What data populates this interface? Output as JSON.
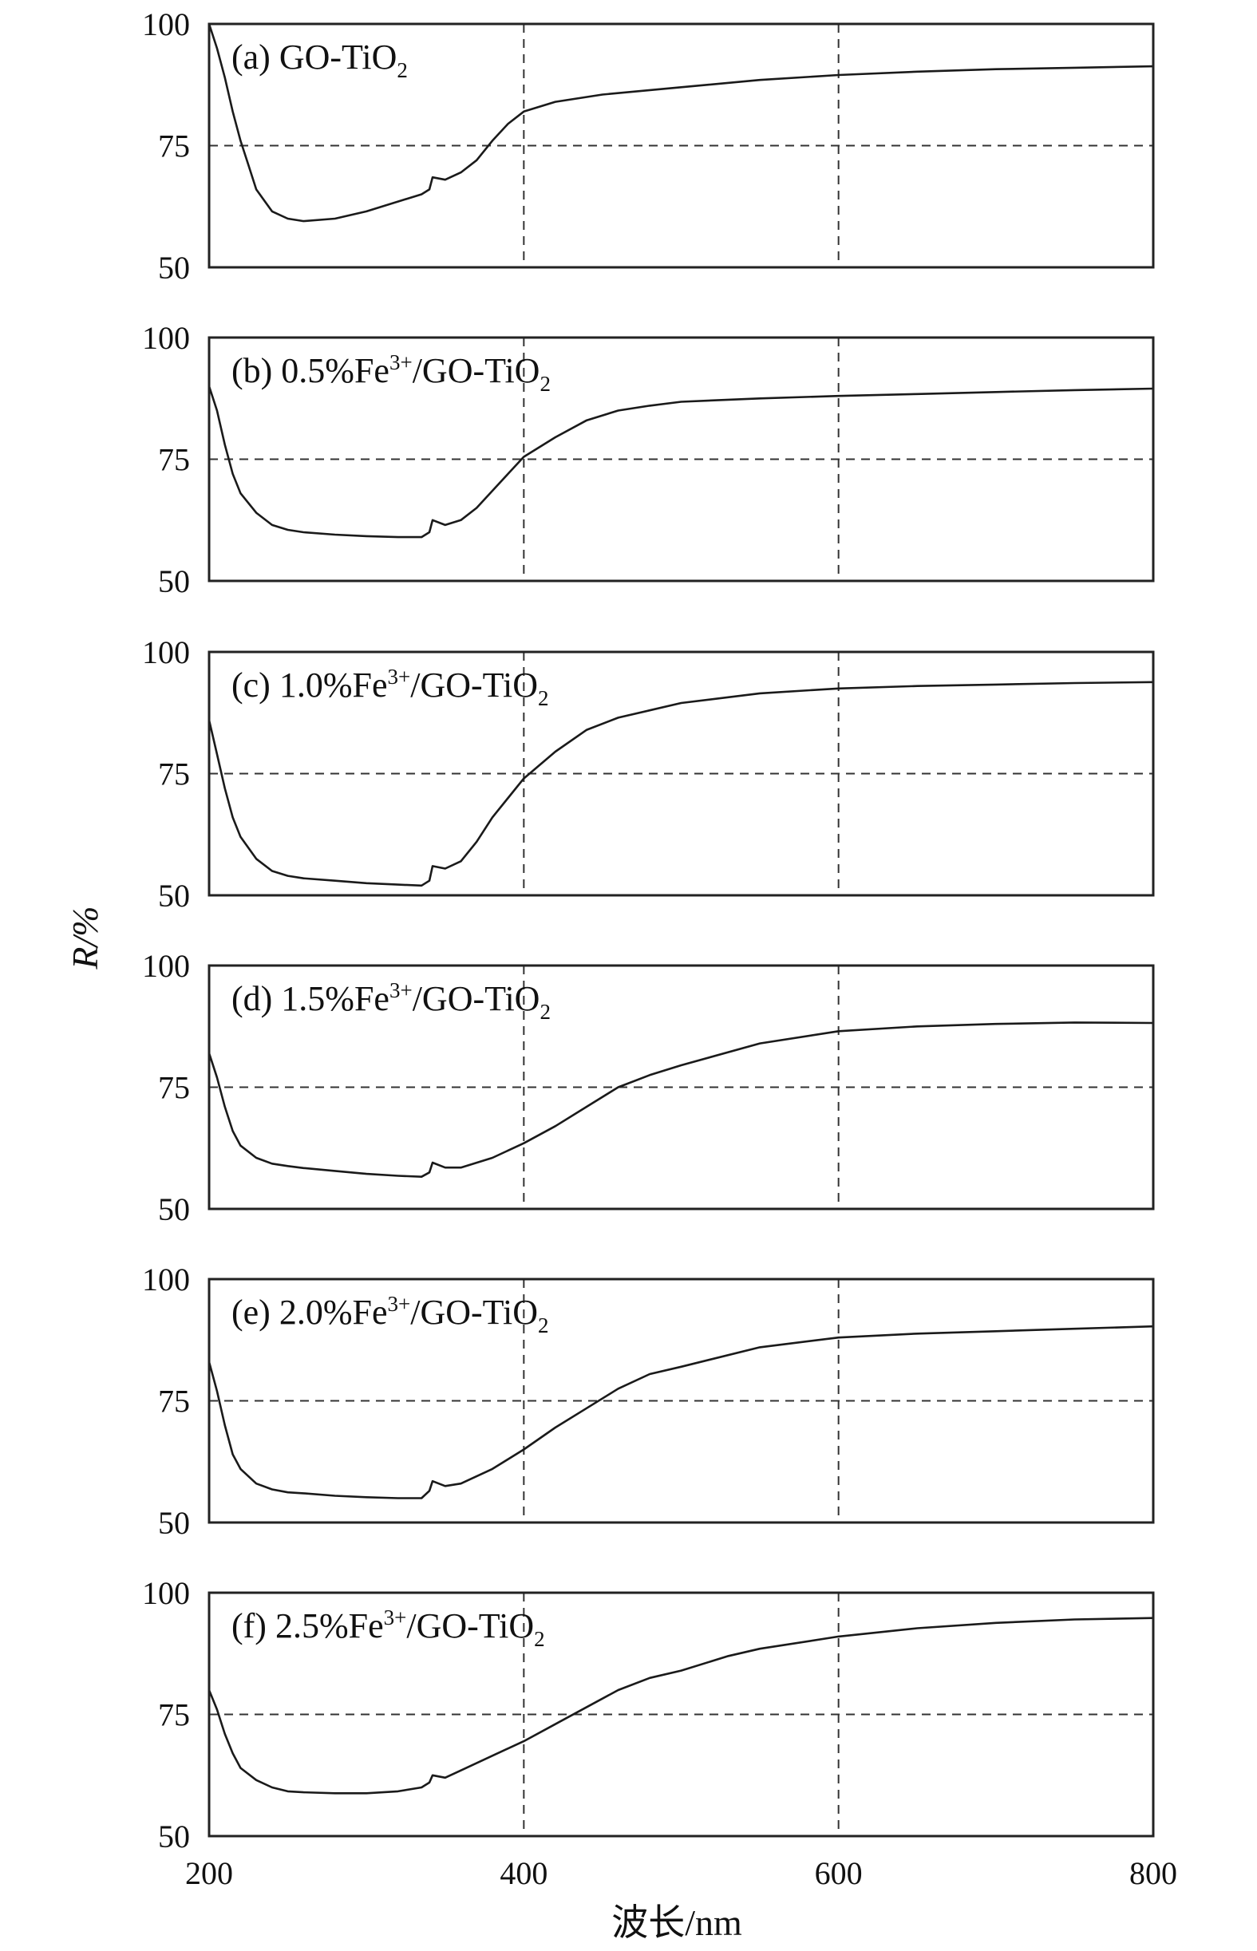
{
  "chart_data": {
    "type": "line",
    "layout": "stacked-panels",
    "xlabel": "波长/nm",
    "ylabel": "R/%",
    "xlim": [
      200,
      800
    ],
    "ylim": [
      50,
      100
    ],
    "x_ticks": [
      "200",
      "400",
      "600",
      "800"
    ],
    "y_ticks": [
      "50",
      "75",
      "100"
    ],
    "grid": {
      "style": "dashed",
      "x_lines": [
        400,
        600
      ],
      "y_lines": [
        75
      ]
    },
    "line_color": "#1a1a1a",
    "panels": [
      {
        "id": "a",
        "label": {
          "prefix": "(a) GO-TiO",
          "sub": "2"
        },
        "x": [
          200,
          205,
          210,
          215,
          220,
          225,
          230,
          240,
          250,
          260,
          280,
          300,
          320,
          335,
          340,
          342,
          350,
          360,
          370,
          380,
          390,
          400,
          420,
          450,
          500,
          550,
          600,
          650,
          700,
          750,
          800
        ],
        "y": [
          100,
          95,
          89,
          82,
          76,
          71,
          66,
          61.5,
          60,
          59.5,
          60,
          61.5,
          63.5,
          65,
          66,
          68.5,
          68,
          69.5,
          72,
          76,
          79.5,
          82,
          84,
          85.5,
          87,
          88.5,
          89.5,
          90.2,
          90.7,
          91,
          91.3
        ]
      },
      {
        "id": "b",
        "label": {
          "prefix": "(b) 0.5%Fe",
          "sup": "3+",
          "mid": "/GO-TiO",
          "sub": "2"
        },
        "x": [
          200,
          205,
          210,
          215,
          220,
          230,
          240,
          250,
          260,
          280,
          300,
          320,
          335,
          340,
          342,
          350,
          360,
          370,
          380,
          390,
          400,
          420,
          440,
          460,
          480,
          500,
          550,
          600,
          650,
          700,
          750,
          800
        ],
        "y": [
          90,
          85,
          78,
          72,
          68,
          64,
          61.5,
          60.5,
          60,
          59.5,
          59.2,
          59,
          59,
          60,
          62.5,
          61.5,
          62.5,
          65,
          68.5,
          72,
          75.5,
          79.5,
          83,
          85,
          86,
          86.8,
          87.5,
          88,
          88.4,
          88.8,
          89.2,
          89.5
        ]
      },
      {
        "id": "c",
        "label": {
          "prefix": "(c) 1.0%Fe",
          "sup": "3+",
          "mid": "/GO-TiO",
          "sub": "2"
        },
        "x": [
          200,
          205,
          210,
          215,
          220,
          230,
          240,
          250,
          260,
          280,
          300,
          320,
          335,
          340,
          342,
          350,
          360,
          370,
          380,
          390,
          400,
          420,
          440,
          460,
          480,
          500,
          550,
          600,
          650,
          700,
          750,
          800
        ],
        "y": [
          86,
          79,
          72,
          66,
          62,
          57.5,
          55,
          54,
          53.5,
          53,
          52.5,
          52.2,
          52,
          53,
          56,
          55.5,
          57,
          61,
          66,
          70,
          74,
          79.5,
          84,
          86.5,
          88,
          89.5,
          91.5,
          92.5,
          93,
          93.3,
          93.6,
          93.8
        ]
      },
      {
        "id": "d",
        "label": {
          "prefix": "(d) 1.5%Fe",
          "sup": "3+",
          "mid": "/GO-TiO",
          "sub": "2"
        },
        "x": [
          200,
          205,
          210,
          215,
          220,
          230,
          240,
          250,
          260,
          280,
          300,
          320,
          335,
          340,
          342,
          350,
          360,
          380,
          400,
          420,
          440,
          460,
          480,
          500,
          550,
          600,
          650,
          700,
          750,
          800
        ],
        "y": [
          82,
          77,
          71,
          66,
          63,
          60.5,
          59.3,
          58.8,
          58.4,
          57.8,
          57.2,
          56.8,
          56.6,
          57.5,
          59.5,
          58.5,
          58.5,
          60.5,
          63.5,
          67,
          71,
          75,
          77.5,
          79.5,
          84,
          86.5,
          87.5,
          88,
          88.3,
          88.2
        ]
      },
      {
        "id": "e",
        "label": {
          "prefix": "(e) 2.0%Fe",
          "sup": "3+",
          "mid": "/GO-TiO",
          "sub": "2"
        },
        "x": [
          200,
          205,
          210,
          215,
          220,
          230,
          240,
          250,
          260,
          280,
          300,
          320,
          335,
          340,
          342,
          350,
          360,
          380,
          400,
          420,
          440,
          460,
          480,
          500,
          550,
          600,
          650,
          700,
          750,
          800
        ],
        "y": [
          83,
          77,
          70,
          64,
          61,
          58,
          56.8,
          56.2,
          56,
          55.5,
          55.2,
          55,
          55,
          56.5,
          58.5,
          57.5,
          58,
          61,
          65,
          69.5,
          73.5,
          77.5,
          80.5,
          82,
          86,
          88,
          88.8,
          89.3,
          89.8,
          90.3
        ]
      },
      {
        "id": "f",
        "label": {
          "prefix": "(f) 2.5%Fe",
          "sup": "3+",
          "mid": "/GO-TiO",
          "sub": "2"
        },
        "x": [
          200,
          205,
          210,
          215,
          220,
          230,
          240,
          250,
          260,
          280,
          300,
          320,
          335,
          340,
          342,
          350,
          360,
          380,
          400,
          420,
          440,
          460,
          480,
          500,
          530,
          550,
          600,
          650,
          700,
          750,
          800
        ],
        "y": [
          80,
          76,
          71,
          67,
          64,
          61.5,
          60,
          59.2,
          59,
          58.8,
          58.8,
          59.2,
          60,
          61,
          62.5,
          62,
          63.5,
          66.5,
          69.5,
          73,
          76.5,
          80,
          82.5,
          84,
          87,
          88.5,
          91,
          92.7,
          93.8,
          94.5,
          94.8
        ]
      }
    ]
  }
}
